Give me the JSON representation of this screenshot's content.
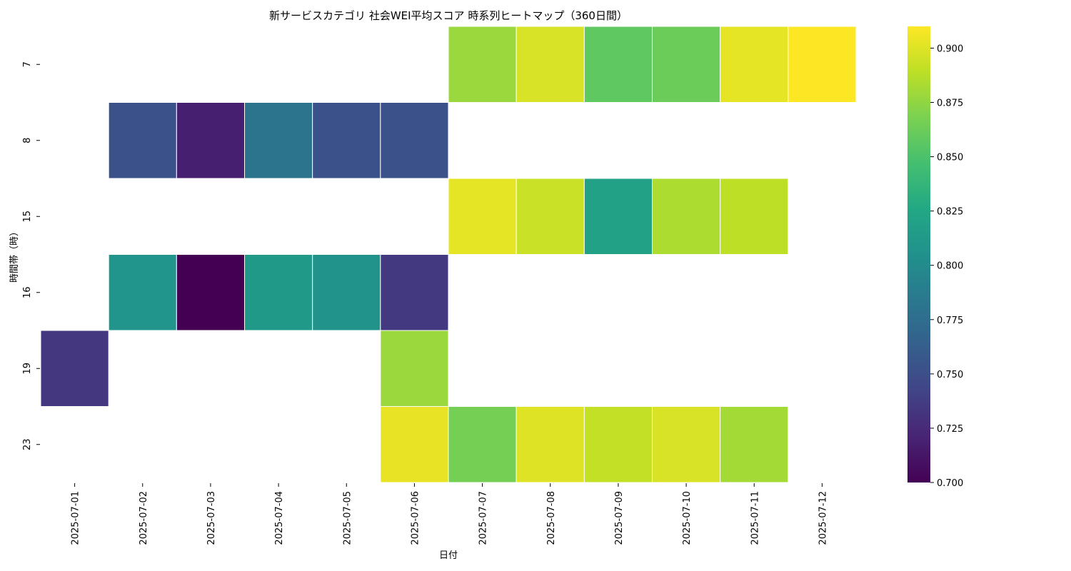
{
  "chart_data": {
    "type": "heatmap",
    "title": "新サービスカテゴリ 社会WEI平均スコア 時系列ヒートマップ（360日間）",
    "xlabel": "日付",
    "ylabel": "時間帯（時）",
    "x": [
      "2025-07-01",
      "2025-07-02",
      "2025-07-03",
      "2025-07-04",
      "2025-07-05",
      "2025-07-06",
      "2025-07-07",
      "2025-07-08",
      "2025-07-09",
      "2025-07-10",
      "2025-07-11",
      "2025-07-12"
    ],
    "y": [
      "7",
      "8",
      "15",
      "16",
      "19",
      "23"
    ],
    "values": [
      [
        null,
        null,
        null,
        null,
        null,
        null,
        0.878,
        0.898,
        0.858,
        0.862,
        0.902,
        0.91
      ],
      [
        null,
        0.752,
        0.718,
        0.78,
        0.752,
        0.752,
        null,
        null,
        null,
        null,
        null,
        null
      ],
      [
        null,
        null,
        null,
        null,
        null,
        null,
        0.902,
        0.893,
        0.82,
        0.884,
        0.889,
        null
      ],
      [
        null,
        0.808,
        0.7,
        0.812,
        0.807,
        0.735,
        null,
        null,
        null,
        null,
        null,
        null
      ],
      [
        0.733,
        null,
        null,
        null,
        null,
        0.878,
        null,
        null,
        null,
        null,
        null,
        null
      ],
      [
        null,
        null,
        null,
        null,
        null,
        0.903,
        0.866,
        0.9,
        0.891,
        0.898,
        0.881,
        null
      ]
    ],
    "colormap": "viridis",
    "colorbar": {
      "min": 0.7,
      "max": 0.91,
      "ticks": [
        0.7,
        0.725,
        0.75,
        0.775,
        0.8,
        0.825,
        0.85,
        0.875,
        0.9
      ],
      "tick_labels": [
        "0.700",
        "0.725",
        "0.750",
        "0.775",
        "0.800",
        "0.825",
        "0.850",
        "0.875",
        "0.900"
      ]
    },
    "grid": false,
    "legend": "colorbar-right"
  }
}
